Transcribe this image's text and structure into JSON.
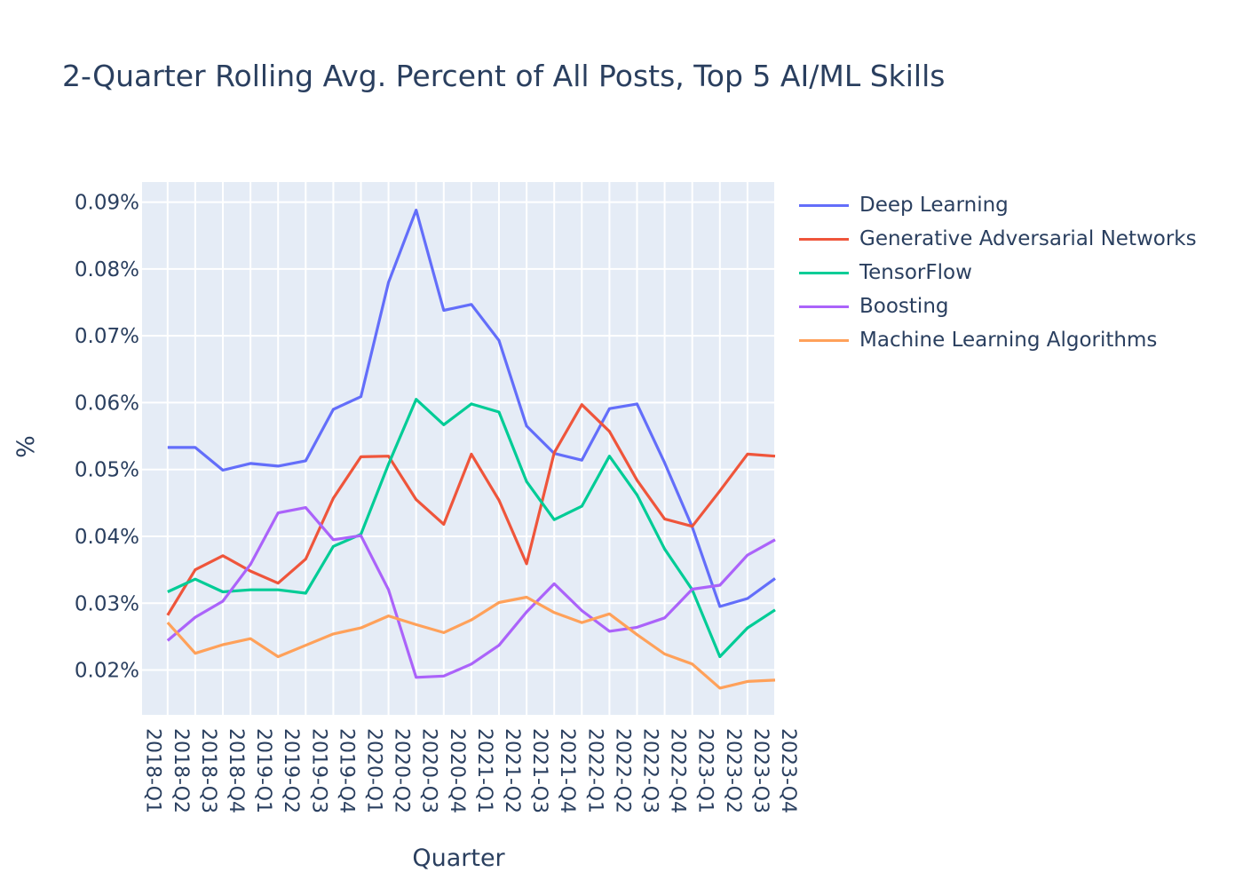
{
  "chart_data": {
    "type": "line",
    "title": "2-Quarter Rolling Avg. Percent of All Posts, Top 5 AI/ML Skills",
    "xlabel": "Quarter",
    "ylabel": "%",
    "categories": [
      "2018-Q1",
      "2018-Q2",
      "2018-Q3",
      "2018-Q4",
      "2019-Q1",
      "2019-Q2",
      "2019-Q3",
      "2019-Q4",
      "2020-Q1",
      "2020-Q2",
      "2020-Q3",
      "2020-Q4",
      "2021-Q1",
      "2021-Q2",
      "2021-Q3",
      "2021-Q4",
      "2022-Q1",
      "2022-Q2",
      "2022-Q3",
      "2022-Q4",
      "2023-Q1",
      "2023-Q2",
      "2023-Q3",
      "2023-Q4"
    ],
    "ylim": [
      0.0133,
      0.093
    ],
    "yticks": [
      0.02,
      0.03,
      0.04,
      0.05,
      0.06,
      0.07,
      0.08,
      0.09
    ],
    "ytick_labels": [
      "0.02%",
      "0.03%",
      "0.04%",
      "0.05%",
      "0.06%",
      "0.07%",
      "0.08%",
      "0.09%"
    ],
    "grid": true,
    "legend_position": "right",
    "background_color": "#e5ecf6",
    "series": [
      {
        "name": "Deep Learning",
        "color": "#636efa",
        "values": [
          null,
          0.0533,
          0.0533,
          0.0499,
          0.0509,
          0.0505,
          0.0513,
          0.059,
          0.0609,
          0.078,
          0.0888,
          0.0738,
          0.0747,
          0.0693,
          0.0565,
          0.0524,
          0.0514,
          0.0591,
          0.0598,
          0.051,
          0.0414,
          0.0295,
          0.0307,
          0.0337
        ]
      },
      {
        "name": "Generative Adversarial Networks",
        "color": "#ef553b",
        "values": [
          null,
          0.0282,
          0.035,
          0.0371,
          0.0348,
          0.033,
          0.0366,
          0.0457,
          0.0519,
          0.052,
          0.0455,
          0.0418,
          0.0523,
          0.0454,
          0.0359,
          0.0525,
          0.0597,
          0.0557,
          0.0484,
          0.0426,
          0.0415,
          0.0468,
          0.0523,
          0.052
        ]
      },
      {
        "name": "TensorFlow",
        "color": "#00cc96",
        "values": [
          null,
          0.0317,
          0.0336,
          0.0317,
          0.032,
          0.032,
          0.0315,
          0.0385,
          0.0403,
          0.0508,
          0.0605,
          0.0567,
          0.0598,
          0.0586,
          0.0482,
          0.0425,
          0.0445,
          0.052,
          0.0462,
          0.0381,
          0.032,
          0.022,
          0.0263,
          0.029
        ]
      },
      {
        "name": "Boosting",
        "color": "#ab63fa",
        "values": [
          null,
          0.0244,
          0.0279,
          0.0303,
          0.0358,
          0.0435,
          0.0443,
          0.0395,
          0.0401,
          0.032,
          0.0189,
          0.0191,
          0.0209,
          0.0237,
          0.0287,
          0.0329,
          0.0289,
          0.0258,
          0.0264,
          0.0278,
          0.0321,
          0.0327,
          0.0372,
          0.0395
        ]
      },
      {
        "name": "Machine Learning Algorithms",
        "color": "#ffa15a",
        "values": [
          null,
          0.0271,
          0.0225,
          0.0238,
          0.0247,
          0.022,
          0.0237,
          0.0254,
          0.0263,
          0.0281,
          0.0268,
          0.0256,
          0.0275,
          0.0301,
          0.0309,
          0.0286,
          0.0271,
          0.0284,
          0.0253,
          0.0224,
          0.0209,
          0.0173,
          0.0183,
          0.0185
        ]
      }
    ]
  }
}
